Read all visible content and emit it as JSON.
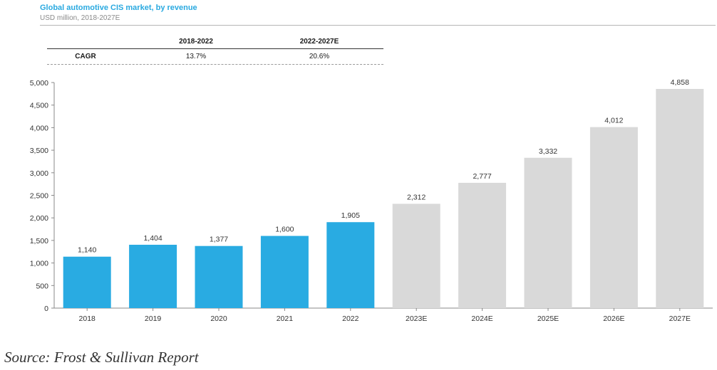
{
  "header": {
    "title": "Global automotive CIS market, by revenue",
    "subtitle": "USD million, 2018-2027E"
  },
  "cagr_table": {
    "columns": [
      "2018-2022",
      "2022-2027E"
    ],
    "row_label": "CAGR",
    "values": [
      "13.7%",
      "20.6%"
    ]
  },
  "source": "Source: Frost & Sullivan Report",
  "colors": {
    "title": "#29a9e0",
    "actual": "#29abe2",
    "forecast": "#d9d9d9"
  },
  "chart_data": {
    "type": "bar",
    "title": "Global automotive CIS market, by revenue",
    "ylabel": "USD million",
    "xlabel": "",
    "ylim": [
      0,
      5000
    ],
    "yticks": [
      0,
      500,
      1000,
      1500,
      2000,
      2500,
      3000,
      3500,
      4000,
      4500,
      5000
    ],
    "grid": false,
    "categories": [
      "2018",
      "2019",
      "2020",
      "2021",
      "2022",
      "2023E",
      "2024E",
      "2025E",
      "2026E",
      "2027E"
    ],
    "values": [
      1140,
      1404,
      1377,
      1600,
      1905,
      2312,
      2777,
      3332,
      4012,
      4858
    ],
    "value_labels": [
      "1,140",
      "1,404",
      "1,377",
      "1,600",
      "1,905",
      "2,312",
      "2,777",
      "3,332",
      "4,012",
      "4,858"
    ],
    "bar_status": [
      "actual",
      "actual",
      "actual",
      "actual",
      "actual",
      "forecast",
      "forecast",
      "forecast",
      "forecast",
      "forecast"
    ]
  }
}
